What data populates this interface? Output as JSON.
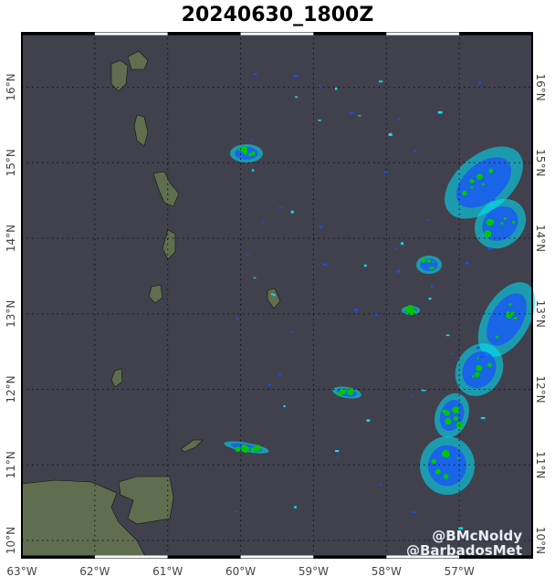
{
  "title": "20240630_1800Z",
  "map": {
    "extent": {
      "lon": [
        -63,
        -56
      ],
      "lat": [
        9.77,
        16.72
      ]
    },
    "ocean_color": "#40414d",
    "land_color": "#5e6e4e",
    "grid": "dotted",
    "lon_ticks": [
      "63°W",
      "62°W",
      "61°W",
      "60°W",
      "59°W",
      "58°W",
      "57°W"
    ],
    "lat_ticks": [
      "16°N",
      "15°N",
      "14°N",
      "13°N",
      "12°N",
      "11°N",
      "10°N"
    ],
    "lat_ticks_right": [
      "16°N",
      "15°N",
      "14°N",
      "13°N",
      "12°N",
      "11°N",
      "10°N"
    ],
    "radar_colors": [
      "#00e5ff",
      "#1a4dff",
      "#00c800"
    ]
  },
  "credits": [
    "@BMcNoldy",
    "@BarbadosMet"
  ]
}
